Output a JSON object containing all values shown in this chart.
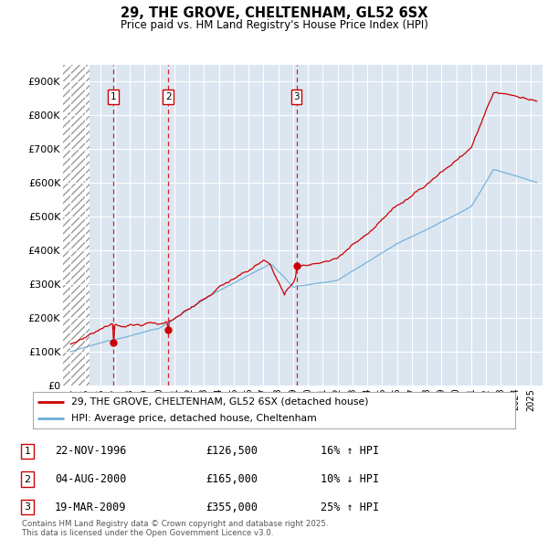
{
  "title": "29, THE GROVE, CHELTENHAM, GL52 6SX",
  "subtitle": "Price paid vs. HM Land Registry's House Price Index (HPI)",
  "ylim": [
    0,
    950000
  ],
  "yticks": [
    0,
    100000,
    200000,
    300000,
    400000,
    500000,
    600000,
    700000,
    800000,
    900000
  ],
  "ytick_labels": [
    "£0",
    "£100K",
    "£200K",
    "£300K",
    "£400K",
    "£500K",
    "£600K",
    "£700K",
    "£800K",
    "£900K"
  ],
  "hpi_color": "#6baed6",
  "price_color": "#cc0000",
  "dashed_color": "#cc0000",
  "bg_color": "#dce6f1",
  "grid_color": "#ffffff",
  "sales": [
    {
      "year": 1996.9,
      "price": 126500,
      "label": "1"
    },
    {
      "year": 2000.6,
      "price": 165000,
      "label": "2"
    },
    {
      "year": 2009.22,
      "price": 355000,
      "label": "3"
    }
  ],
  "legend_entries": [
    "29, THE GROVE, CHELTENHAM, GL52 6SX (detached house)",
    "HPI: Average price, detached house, Cheltenham"
  ],
  "table_rows": [
    {
      "num": "1",
      "date": "22-NOV-1996",
      "price": "£126,500",
      "change": "16% ↑ HPI"
    },
    {
      "num": "2",
      "date": "04-AUG-2000",
      "price": "£165,000",
      "change": "10% ↓ HPI"
    },
    {
      "num": "3",
      "date": "19-MAR-2009",
      "price": "£355,000",
      "change": "25% ↑ HPI"
    }
  ],
  "footer": "Contains HM Land Registry data © Crown copyright and database right 2025.\nThis data is licensed under the Open Government Licence v3.0."
}
